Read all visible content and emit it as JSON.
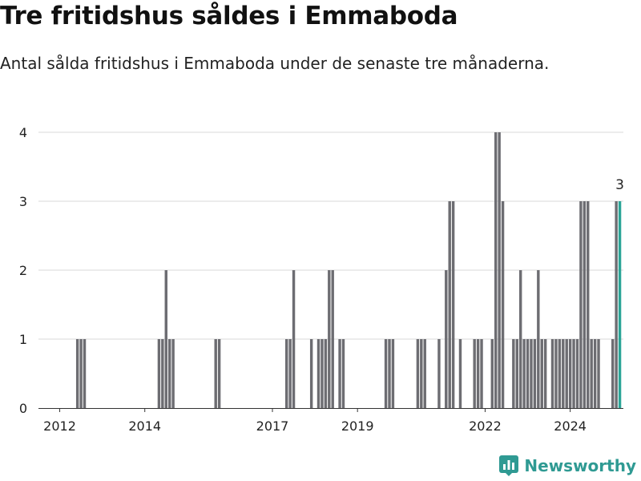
{
  "title": "Tre fritidshus såldes i Emmaboda",
  "subtitle": "Antal sålda fritidshus i Emmaboda under de senaste tre månaderna.",
  "brand": "Newsworthy",
  "colors": {
    "bar": "#6d6d72",
    "highlight": "#2ba597",
    "grid": "#d9d9d9",
    "brand": "#2f9a93"
  },
  "chart_data": {
    "type": "bar",
    "title": "Tre fritidshus såldes i Emmaboda",
    "subtitle": "Antal sålda fritidshus i Emmaboda under de senaste tre månaderna.",
    "xlabel": "",
    "ylabel": "",
    "ylim": [
      0,
      4
    ],
    "yticks": [
      0,
      1,
      2,
      3,
      4
    ],
    "xlim": [
      "2011-07",
      "2025-04"
    ],
    "xticks": [
      {
        "value": "2012-01",
        "label": "2012"
      },
      {
        "value": "2014-01",
        "label": "2014"
      },
      {
        "value": "2017-01",
        "label": "2017"
      },
      {
        "value": "2019-01",
        "label": "2019"
      },
      {
        "value": "2022-01",
        "label": "2022"
      },
      {
        "value": "2024-01",
        "label": "2024"
      }
    ],
    "grid": true,
    "bars": [
      {
        "x": "2012-06",
        "value": 1
      },
      {
        "x": "2012-07",
        "value": 1
      },
      {
        "x": "2012-08",
        "value": 1
      },
      {
        "x": "2014-05",
        "value": 1
      },
      {
        "x": "2014-06",
        "value": 1
      },
      {
        "x": "2014-07",
        "value": 2
      },
      {
        "x": "2014-08",
        "value": 1
      },
      {
        "x": "2014-09",
        "value": 1
      },
      {
        "x": "2015-09",
        "value": 1
      },
      {
        "x": "2015-10",
        "value": 1
      },
      {
        "x": "2017-05",
        "value": 1
      },
      {
        "x": "2017-06",
        "value": 1
      },
      {
        "x": "2017-07",
        "value": 2
      },
      {
        "x": "2017-12",
        "value": 1
      },
      {
        "x": "2018-02",
        "value": 1
      },
      {
        "x": "2018-03",
        "value": 1
      },
      {
        "x": "2018-04",
        "value": 1
      },
      {
        "x": "2018-05",
        "value": 2
      },
      {
        "x": "2018-06",
        "value": 2
      },
      {
        "x": "2018-08",
        "value": 1
      },
      {
        "x": "2018-09",
        "value": 1
      },
      {
        "x": "2019-09",
        "value": 1
      },
      {
        "x": "2019-10",
        "value": 1
      },
      {
        "x": "2019-11",
        "value": 1
      },
      {
        "x": "2020-06",
        "value": 1
      },
      {
        "x": "2020-07",
        "value": 1
      },
      {
        "x": "2020-08",
        "value": 1
      },
      {
        "x": "2020-12",
        "value": 1
      },
      {
        "x": "2021-02",
        "value": 2
      },
      {
        "x": "2021-03",
        "value": 3
      },
      {
        "x": "2021-04",
        "value": 3
      },
      {
        "x": "2021-06",
        "value": 1
      },
      {
        "x": "2021-10",
        "value": 1
      },
      {
        "x": "2021-11",
        "value": 1
      },
      {
        "x": "2021-12",
        "value": 1
      },
      {
        "x": "2022-03",
        "value": 1
      },
      {
        "x": "2022-04",
        "value": 4
      },
      {
        "x": "2022-05",
        "value": 4
      },
      {
        "x": "2022-06",
        "value": 3
      },
      {
        "x": "2022-09",
        "value": 1
      },
      {
        "x": "2022-10",
        "value": 1
      },
      {
        "x": "2022-11",
        "value": 2
      },
      {
        "x": "2022-12",
        "value": 1
      },
      {
        "x": "2023-01",
        "value": 1
      },
      {
        "x": "2023-02",
        "value": 1
      },
      {
        "x": "2023-03",
        "value": 1
      },
      {
        "x": "2023-04",
        "value": 2
      },
      {
        "x": "2023-05",
        "value": 1
      },
      {
        "x": "2023-06",
        "value": 1
      },
      {
        "x": "2023-08",
        "value": 1
      },
      {
        "x": "2023-09",
        "value": 1
      },
      {
        "x": "2023-10",
        "value": 1
      },
      {
        "x": "2023-11",
        "value": 1
      },
      {
        "x": "2023-12",
        "value": 1
      },
      {
        "x": "2024-01",
        "value": 1
      },
      {
        "x": "2024-02",
        "value": 1
      },
      {
        "x": "2024-03",
        "value": 1
      },
      {
        "x": "2024-04",
        "value": 3
      },
      {
        "x": "2024-05",
        "value": 3
      },
      {
        "x": "2024-06",
        "value": 3
      },
      {
        "x": "2024-07",
        "value": 1
      },
      {
        "x": "2024-08",
        "value": 1
      },
      {
        "x": "2024-09",
        "value": 1
      },
      {
        "x": "2025-01",
        "value": 1
      },
      {
        "x": "2025-02",
        "value": 3
      },
      {
        "x": "2025-03",
        "value": 3,
        "highlight": true,
        "label": "3"
      }
    ]
  }
}
